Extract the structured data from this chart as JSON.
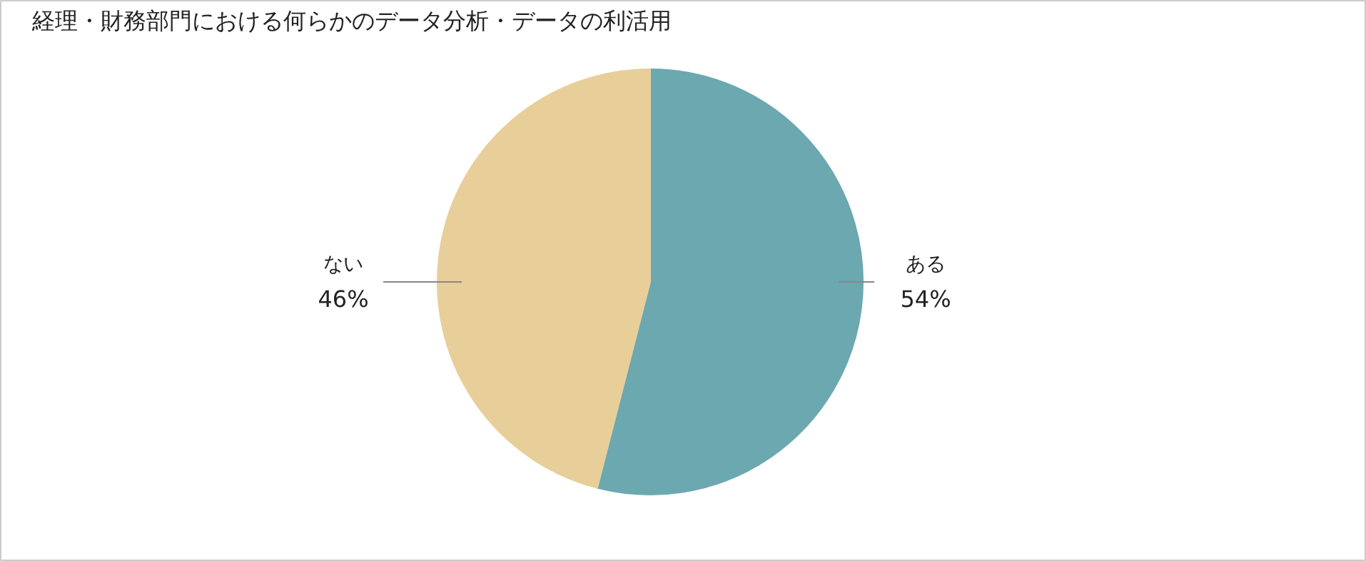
{
  "chart_data": {
    "type": "pie",
    "title": "経理・財務部門における何らかのデータ分析・データの利活用",
    "categories": [
      "ある",
      "ない"
    ],
    "values": [
      54,
      46
    ],
    "colors": [
      "#6ca8b0",
      "#e8cf9a"
    ],
    "value_labels": [
      "54%",
      "46%"
    ]
  }
}
